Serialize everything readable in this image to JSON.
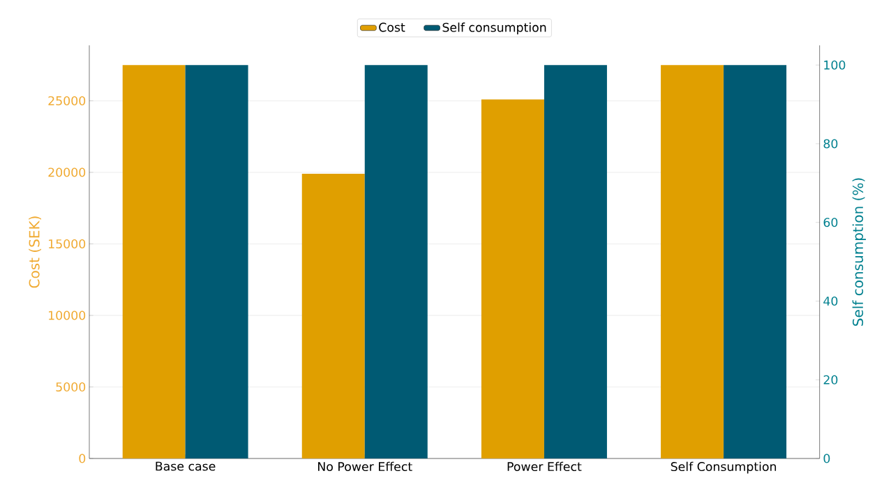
{
  "chart_data": {
    "type": "bar",
    "categories": [
      "Base case",
      "No Power Effect",
      "Power Effect",
      "Self Consumption"
    ],
    "series": [
      {
        "name": "Cost",
        "color": "#e09f00",
        "values": [
          27500,
          19900,
          25100,
          27500
        ]
      },
      {
        "name": "Self consumption",
        "color": "#005a73",
        "values": [
          100,
          100,
          100,
          100
        ],
        "axis": "y2"
      }
    ],
    "ylabel": "Cost (SEK)",
    "y2label": "Self consumption (%)",
    "ylim": [
      0,
      28875
    ],
    "yticks": [
      0,
      5000,
      10000,
      15000,
      20000,
      25000
    ],
    "y2lim": [
      0,
      105
    ],
    "y2ticks": [
      0,
      20,
      40,
      60,
      80,
      100
    ],
    "legend": "top",
    "grid": "y"
  }
}
